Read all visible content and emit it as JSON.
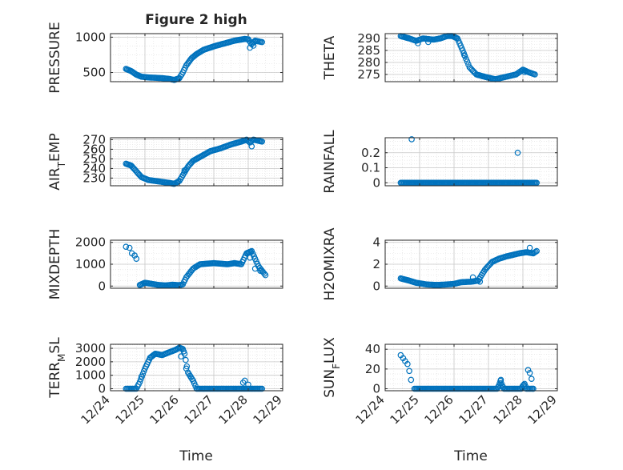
{
  "title": "Figure 2 high",
  "xlabel_left": "Time",
  "xlabel_right": "Time",
  "colors": {
    "marker": "#0072BD",
    "axis": "#262626",
    "grid": "#c8c8c8"
  },
  "chart_data": [
    {
      "id": "pressure",
      "type": "scatter",
      "ylabel": "PRESSURE",
      "xlim": [
        0,
        5
      ],
      "ylim": [
        370,
        1050
      ],
      "yticks": [
        500,
        1000
      ],
      "ytick_labels": [
        "500",
        "1000"
      ],
      "xticks": [
        0,
        1,
        2,
        3,
        4,
        5
      ],
      "xtick_labels": [],
      "profile": [
        [
          0.45,
          550
        ],
        [
          0.6,
          520
        ],
        [
          0.75,
          470
        ],
        [
          0.9,
          440
        ],
        [
          1.1,
          430
        ],
        [
          1.3,
          425
        ],
        [
          1.5,
          420
        ],
        [
          1.7,
          410
        ],
        [
          1.85,
          395
        ],
        [
          2.0,
          420
        ],
        [
          2.1,
          500
        ],
        [
          2.2,
          600
        ],
        [
          2.35,
          700
        ],
        [
          2.5,
          760
        ],
        [
          2.7,
          820
        ],
        [
          3.0,
          870
        ],
        [
          3.3,
          910
        ],
        [
          3.6,
          950
        ],
        [
          3.9,
          975
        ],
        [
          4.0,
          970
        ],
        [
          4.1,
          900
        ],
        [
          4.2,
          950
        ],
        [
          4.4,
          930
        ]
      ],
      "outliers": [
        [
          4.05,
          850
        ],
        [
          4.15,
          880
        ]
      ]
    },
    {
      "id": "theta",
      "type": "scatter",
      "ylabel": "THETA",
      "xlim": [
        0,
        5
      ],
      "ylim": [
        272,
        292
      ],
      "yticks": [
        275,
        280,
        285,
        290
      ],
      "ytick_labels": [
        "275",
        "280",
        "285",
        "290"
      ],
      "xticks": [
        0,
        1,
        2,
        3,
        4,
        5
      ],
      "xtick_labels": [],
      "profile": [
        [
          0.45,
          291
        ],
        [
          0.7,
          290
        ],
        [
          0.9,
          289
        ],
        [
          1.1,
          290
        ],
        [
          1.4,
          289.5
        ],
        [
          1.6,
          290
        ],
        [
          1.8,
          291
        ],
        [
          1.95,
          291
        ],
        [
          2.1,
          290
        ],
        [
          2.25,
          285
        ],
        [
          2.45,
          278
        ],
        [
          2.65,
          275
        ],
        [
          2.9,
          274
        ],
        [
          3.2,
          273
        ],
        [
          3.5,
          274
        ],
        [
          3.8,
          275
        ],
        [
          4.0,
          277
        ],
        [
          4.15,
          276
        ],
        [
          4.35,
          275
        ]
      ],
      "outliers": [
        [
          0.95,
          288
        ],
        [
          1.25,
          288.5
        ],
        [
          2.3,
          283
        ],
        [
          4.05,
          276
        ]
      ]
    },
    {
      "id": "air_temp",
      "type": "scatter",
      "ylabel": "AIR_TEMP",
      "xlim": [
        0,
        5
      ],
      "ylim": [
        222,
        272
      ],
      "yticks": [
        230,
        240,
        250,
        260,
        270
      ],
      "ytick_labels": [
        "230",
        "240",
        "250",
        "260",
        "270"
      ],
      "xticks": [
        0,
        1,
        2,
        3,
        4,
        5
      ],
      "xtick_labels": [],
      "profile": [
        [
          0.45,
          245
        ],
        [
          0.6,
          243
        ],
        [
          0.75,
          237
        ],
        [
          0.9,
          231
        ],
        [
          1.1,
          228
        ],
        [
          1.3,
          227
        ],
        [
          1.5,
          226
        ],
        [
          1.7,
          225
        ],
        [
          1.85,
          224
        ],
        [
          2.0,
          227
        ],
        [
          2.1,
          233
        ],
        [
          2.25,
          242
        ],
        [
          2.4,
          248
        ],
        [
          2.6,
          252
        ],
        [
          2.9,
          258
        ],
        [
          3.2,
          261
        ],
        [
          3.5,
          265
        ],
        [
          3.8,
          268
        ],
        [
          3.95,
          270
        ],
        [
          4.05,
          267
        ],
        [
          4.15,
          270
        ],
        [
          4.4,
          268
        ]
      ],
      "outliers": [
        [
          4.1,
          263
        ],
        [
          2.15,
          238
        ]
      ]
    },
    {
      "id": "rainfall",
      "type": "scatter",
      "ylabel": "RAINFALL",
      "xlim": [
        0,
        5
      ],
      "ylim": [
        -0.02,
        0.3
      ],
      "yticks": [
        0,
        0.1,
        0.2
      ],
      "ytick_labels": [
        "0",
        "0.1",
        "0.2"
      ],
      "xticks": [
        0,
        1,
        2,
        3,
        4,
        5
      ],
      "xtick_labels": [],
      "profile": [
        [
          0.45,
          0
        ],
        [
          4.4,
          0
        ]
      ],
      "outliers": [
        [
          0.77,
          0.29
        ],
        [
          3.85,
          0.2
        ]
      ]
    },
    {
      "id": "mixdepth",
      "type": "scatter",
      "ylabel": "MIXDEPTH",
      "xlim": [
        0,
        5
      ],
      "ylim": [
        -100,
        2100
      ],
      "yticks": [
        0,
        1000,
        2000
      ],
      "ytick_labels": [
        "0",
        "1000",
        "2000"
      ],
      "xticks": [
        0,
        1,
        2,
        3,
        4,
        5
      ],
      "xtick_labels": [],
      "profile": [
        [
          0.85,
          50
        ],
        [
          1.0,
          150
        ],
        [
          1.2,
          100
        ],
        [
          1.4,
          50
        ],
        [
          1.6,
          30
        ],
        [
          1.8,
          60
        ],
        [
          2.0,
          40
        ],
        [
          2.1,
          80
        ],
        [
          2.2,
          400
        ],
        [
          2.4,
          800
        ],
        [
          2.6,
          1000
        ],
        [
          3.0,
          1050
        ],
        [
          3.4,
          1000
        ],
        [
          3.6,
          1050
        ],
        [
          3.8,
          1000
        ],
        [
          3.95,
          1500
        ],
        [
          4.1,
          1600
        ],
        [
          4.3,
          900
        ],
        [
          4.5,
          500
        ]
      ],
      "outliers": [
        [
          0.45,
          1800
        ],
        [
          0.55,
          1750
        ],
        [
          0.62,
          1500
        ],
        [
          0.7,
          1400
        ],
        [
          0.75,
          1250
        ],
        [
          4.05,
          1300
        ],
        [
          4.2,
          800
        ],
        [
          4.35,
          700
        ]
      ]
    },
    {
      "id": "h2omixra",
      "type": "scatter",
      "ylabel": "H2OMIXRA",
      "xlim": [
        0,
        5
      ],
      "ylim": [
        -0.2,
        4.2
      ],
      "yticks": [
        0,
        2,
        4
      ],
      "ytick_labels": [
        "0",
        "2",
        "4"
      ],
      "xticks": [
        0,
        1,
        2,
        3,
        4,
        5
      ],
      "xtick_labels": [],
      "profile": [
        [
          0.45,
          0.7
        ],
        [
          0.7,
          0.5
        ],
        [
          0.9,
          0.3
        ],
        [
          1.2,
          0.15
        ],
        [
          1.5,
          0.1
        ],
        [
          1.8,
          0.15
        ],
        [
          2.0,
          0.2
        ],
        [
          2.2,
          0.35
        ],
        [
          2.5,
          0.4
        ],
        [
          2.7,
          0.5
        ],
        [
          2.9,
          1.5
        ],
        [
          3.1,
          2.2
        ],
        [
          3.3,
          2.5
        ],
        [
          3.5,
          2.7
        ],
        [
          3.7,
          2.85
        ],
        [
          3.9,
          3.0
        ],
        [
          4.1,
          3.1
        ],
        [
          4.3,
          3.0
        ],
        [
          4.4,
          3.2
        ]
      ],
      "outliers": [
        [
          4.2,
          3.5
        ],
        [
          2.55,
          0.8
        ],
        [
          2.75,
          0.4
        ]
      ]
    },
    {
      "id": "terr_msl",
      "type": "scatter",
      "ylabel": "TERR_MSL",
      "xlim": [
        0,
        5
      ],
      "ylim": [
        -150,
        3300
      ],
      "yticks": [
        0,
        1000,
        2000,
        3000
      ],
      "ytick_labels": [
        "0",
        "1000",
        "2000",
        "3000"
      ],
      "xticks": [
        0,
        1,
        2,
        3,
        4,
        5
      ],
      "xtick_labels": [
        "12/24",
        "12/25",
        "12/26",
        "12/27",
        "12/28",
        "12/29"
      ],
      "profile": [
        [
          0.45,
          0
        ],
        [
          0.75,
          0
        ],
        [
          0.85,
          500
        ],
        [
          1.0,
          1500
        ],
        [
          1.15,
          2300
        ],
        [
          1.3,
          2600
        ],
        [
          1.5,
          2500
        ],
        [
          1.7,
          2700
        ],
        [
          1.9,
          2900
        ],
        [
          2.0,
          3050
        ],
        [
          2.1,
          2950
        ],
        [
          2.15,
          2600
        ],
        [
          2.25,
          1200
        ],
        [
          2.4,
          600
        ],
        [
          2.5,
          0
        ],
        [
          3.8,
          0
        ],
        [
          4.4,
          0
        ]
      ],
      "outliers": [
        [
          0.9,
          900
        ],
        [
          2.05,
          2400
        ],
        [
          2.2,
          1500
        ],
        [
          3.9,
          600
        ],
        [
          4.0,
          300
        ],
        [
          3.85,
          450
        ]
      ]
    },
    {
      "id": "sun_flux",
      "type": "scatter",
      "ylabel": "SUN_FLUX",
      "xlim": [
        0,
        5
      ],
      "ylim": [
        -2,
        45
      ],
      "yticks": [
        0,
        20,
        40
      ],
      "ytick_labels": [
        "0",
        "20",
        "40"
      ],
      "xticks": [
        0,
        1,
        2,
        3,
        4,
        5
      ],
      "xtick_labels": [
        "12/24",
        "12/25",
        "12/26",
        "12/27",
        "12/28",
        "12/29"
      ],
      "profile": [
        [
          0.85,
          0
        ],
        [
          3.25,
          0
        ],
        [
          3.3,
          3
        ],
        [
          3.35,
          8
        ],
        [
          3.4,
          3
        ],
        [
          3.45,
          0
        ],
        [
          3.95,
          0
        ],
        [
          4.0,
          3
        ],
        [
          4.05,
          5
        ],
        [
          4.1,
          0
        ],
        [
          4.3,
          0
        ]
      ],
      "outliers": [
        [
          0.45,
          34
        ],
        [
          0.52,
          31
        ],
        [
          0.58,
          28
        ],
        [
          0.65,
          25
        ],
        [
          0.7,
          18
        ],
        [
          0.75,
          9
        ],
        [
          3.36,
          9
        ],
        [
          4.15,
          19
        ],
        [
          4.2,
          16
        ],
        [
          4.25,
          10
        ],
        [
          4.3,
          0
        ]
      ]
    }
  ]
}
